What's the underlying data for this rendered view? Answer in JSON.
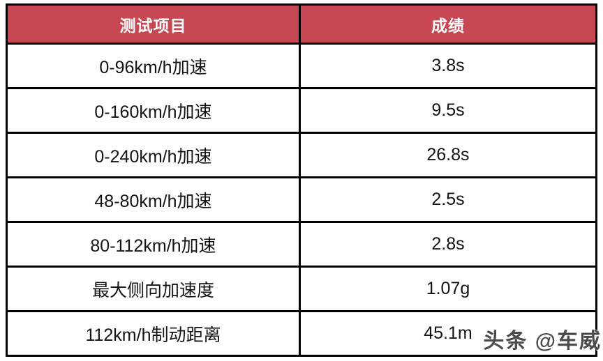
{
  "colors": {
    "header_bg": "#C84754",
    "header_text": "#FFFFFF",
    "border": "#000000",
    "cell_bg": "#FFFFFF",
    "cell_text": "#141414",
    "watermark_text": "#4A4A4A"
  },
  "table": {
    "columns": [
      "测试项目",
      "成绩"
    ],
    "rows": [
      {
        "item": "0-96km/h加速",
        "value": "3.8s"
      },
      {
        "item": "0-160km/h加速",
        "value": "9.5s"
      },
      {
        "item": "0-240km/h加速",
        "value": "26.8s"
      },
      {
        "item": "48-80km/h加速",
        "value": "2.5s"
      },
      {
        "item": "80-112km/h加速",
        "value": "2.8s"
      },
      {
        "item": "最大侧向加速度",
        "value": "1.07g"
      },
      {
        "item": "112km/h制动距离",
        "value": "45.1m"
      }
    ]
  },
  "watermark": {
    "text": "头条 @车威"
  },
  "chart_data": {
    "type": "table",
    "title": "",
    "columns": [
      "测试项目",
      "成绩"
    ],
    "rows": [
      [
        "0-96km/h加速",
        "3.8s"
      ],
      [
        "0-160km/h加速",
        "9.5s"
      ],
      [
        "0-240km/h加速",
        "26.8s"
      ],
      [
        "48-80km/h加速",
        "2.5s"
      ],
      [
        "80-112km/h加速",
        "2.8s"
      ],
      [
        "最大侧向加速度",
        "1.07g"
      ],
      [
        "112km/h制动距离",
        "45.1m"
      ]
    ]
  }
}
